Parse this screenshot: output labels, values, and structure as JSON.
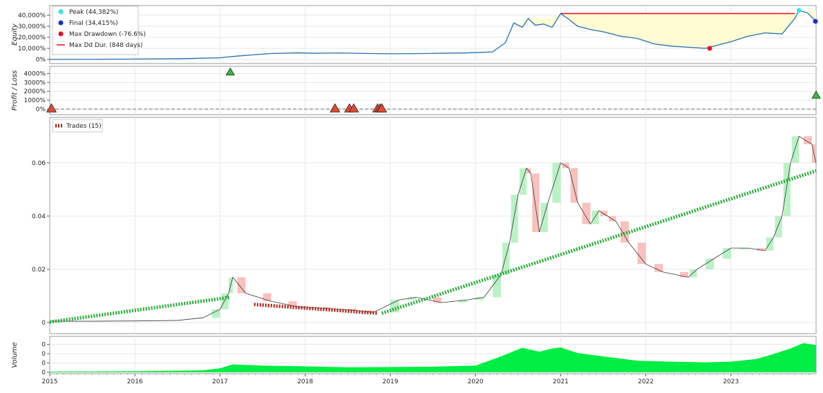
{
  "equity_panel": {
    "ylabel": "Equity",
    "yticks": [
      "0%",
      "10,000%",
      "20,000%",
      "30,000%",
      "40,000%"
    ],
    "legend": [
      {
        "label": "Peak (44,382%)",
        "color": "#2ee6f0",
        "kind": "dot"
      },
      {
        "label": "Final (34,415%)",
        "color": "#1030d8",
        "kind": "dot"
      },
      {
        "label": "Max Drawdown (-76.6%)",
        "color": "#e8102a",
        "kind": "dot"
      },
      {
        "label": "Max Dd Dur. (848 days)",
        "color": "#e8102a",
        "kind": "line"
      }
    ]
  },
  "pl_panel": {
    "ylabel": "Profit / Loss",
    "yticks": [
      "0%",
      "1000%",
      "2000%",
      "3000%",
      "4000%"
    ]
  },
  "price_panel": {
    "yticks": [
      "0",
      "0.02",
      "0.04",
      "0.06"
    ],
    "legend": "Trades (15)"
  },
  "volume_panel": {
    "ylabel": "Volume",
    "yticks": [
      "0",
      "0",
      "0",
      "0"
    ]
  },
  "xaxis": {
    "ticks": [
      "2015",
      "2016",
      "2017",
      "2018",
      "2019",
      "2020",
      "2021",
      "2022",
      "2023"
    ]
  },
  "colors": {
    "equity_line": "#1f6fb0",
    "drawdown_fill": "#fffbd2",
    "win": "#2fbf3a",
    "loss": "#e24a33",
    "volume": "#00ee44",
    "up_candle": "#b9f2c4",
    "down_candle": "#f9c0bc"
  },
  "chart_data": [
    {
      "type": "line",
      "name": "equity",
      "ylabel": "Equity",
      "ylim": [
        0,
        45000
      ],
      "x": [
        2015.0,
        2015.5,
        2016.0,
        2016.5,
        2017.0,
        2017.2,
        2017.4,
        2017.6,
        2017.9,
        2018.1,
        2018.4,
        2018.7,
        2019.0,
        2019.4,
        2019.6,
        2019.9,
        2020.2,
        2020.35,
        2020.45,
        2020.55,
        2020.62,
        2020.7,
        2020.8,
        2020.9,
        2021.0,
        2021.1,
        2021.2,
        2021.35,
        2021.5,
        2021.7,
        2021.9,
        2022.1,
        2022.3,
        2022.5,
        2022.7,
        2022.8,
        2023.0,
        2023.2,
        2023.4,
        2023.6,
        2023.75,
        2023.8,
        2023.9,
        2024.0
      ],
      "y": [
        0,
        100,
        300,
        600,
        1500,
        3000,
        4200,
        5300,
        5900,
        5600,
        5800,
        5400,
        5100,
        5300,
        5600,
        5900,
        6800,
        15000,
        33000,
        29000,
        37000,
        31000,
        32000,
        29000,
        41500,
        36000,
        30000,
        27000,
        25000,
        21000,
        19000,
        14000,
        12000,
        11000,
        10000,
        12000,
        16000,
        21000,
        24000,
        23000,
        37000,
        44382,
        42000,
        34415
      ],
      "peak": 44382,
      "final": 34415,
      "max_drawdown_pct": -76.6,
      "max_dd_duration_days": 848
    },
    {
      "type": "scatter",
      "name": "trade profit/loss",
      "ylabel": "Profit / Loss",
      "ylim": [
        0,
        4500
      ],
      "x": [
        2015.02,
        2017.12,
        2018.35,
        2018.52,
        2018.57,
        2018.85,
        2018.88,
        2018.9,
        2024.0
      ],
      "y": [
        0,
        4100,
        0,
        0,
        0,
        0,
        0,
        0,
        1500
      ],
      "outcome": [
        "loss",
        "win",
        "loss",
        "loss",
        "loss",
        "loss",
        "loss",
        "loss",
        "win"
      ]
    },
    {
      "type": "line",
      "name": "price",
      "ylim": [
        0,
        0.075
      ],
      "x": [
        2015.0,
        2015.5,
        2016.0,
        2016.5,
        2016.8,
        2017.0,
        2017.1,
        2017.15,
        2017.3,
        2017.6,
        2017.9,
        2018.0,
        2018.3,
        2018.6,
        2018.8,
        2019.1,
        2019.3,
        2019.6,
        2019.9,
        2020.1,
        2020.3,
        2020.4,
        2020.5,
        2020.6,
        2020.65,
        2020.75,
        2020.85,
        2021.0,
        2021.1,
        2021.2,
        2021.35,
        2021.45,
        2021.55,
        2021.65,
        2021.8,
        2022.0,
        2022.2,
        2022.5,
        2022.6,
        2022.8,
        2023.0,
        2023.2,
        2023.4,
        2023.5,
        2023.6,
        2023.7,
        2023.8,
        2023.95,
        2024.0
      ],
      "y": [
        0.0005,
        0.0005,
        0.0006,
        0.0008,
        0.0018,
        0.005,
        0.011,
        0.017,
        0.011,
        0.008,
        0.006,
        0.0058,
        0.0052,
        0.0045,
        0.0038,
        0.0085,
        0.0095,
        0.0075,
        0.0085,
        0.0095,
        0.018,
        0.03,
        0.048,
        0.058,
        0.056,
        0.034,
        0.045,
        0.06,
        0.058,
        0.045,
        0.037,
        0.042,
        0.04,
        0.038,
        0.03,
        0.022,
        0.019,
        0.017,
        0.02,
        0.024,
        0.028,
        0.028,
        0.027,
        0.032,
        0.04,
        0.06,
        0.07,
        0.067,
        0.06
      ]
    },
    {
      "type": "line",
      "name": "trades",
      "legend": "Trades (15)",
      "segments": [
        {
          "x0": 2015.0,
          "y0": 0.0002,
          "x1": 2017.12,
          "y1": 0.0095,
          "outcome": "win"
        },
        {
          "x0": 2017.4,
          "y0": 0.0068,
          "x1": 2018.85,
          "y1": 0.0035,
          "outcome": "loss"
        },
        {
          "x0": 2018.9,
          "y0": 0.0035,
          "x1": 2024.0,
          "y1": 0.057,
          "outcome": "win"
        }
      ]
    },
    {
      "type": "area",
      "name": "volume",
      "ylabel": "Volume",
      "x": [
        2015.0,
        2016.0,
        2016.8,
        2017.0,
        2017.15,
        2017.5,
        2018.0,
        2018.5,
        2019.0,
        2019.5,
        2020.0,
        2020.3,
        2020.55,
        2020.75,
        2020.9,
        2021.0,
        2021.2,
        2021.5,
        2021.9,
        2022.3,
        2022.7,
        2023.0,
        2023.3,
        2023.5,
        2023.7,
        2023.85,
        2024.0
      ],
      "y": [
        0.02,
        0.03,
        0.06,
        0.12,
        0.24,
        0.2,
        0.18,
        0.15,
        0.16,
        0.17,
        0.2,
        0.48,
        0.74,
        0.62,
        0.72,
        0.75,
        0.58,
        0.48,
        0.35,
        0.32,
        0.3,
        0.32,
        0.4,
        0.55,
        0.72,
        0.88,
        0.82
      ]
    }
  ]
}
